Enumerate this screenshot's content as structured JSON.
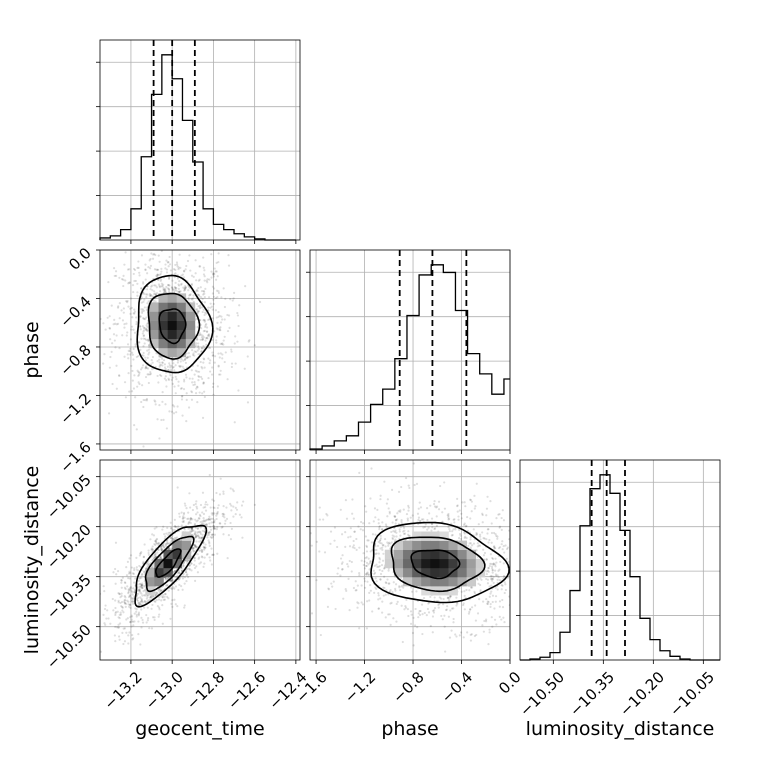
{
  "chart_data": {
    "type": "corner",
    "parameters": [
      "geocent_time",
      "phase",
      "luminosity_distance"
    ],
    "axis_labels": {
      "x": [
        "geocent_time",
        "phase",
        "luminosity_distance"
      ],
      "y": [
        "phase",
        "luminosity_distance"
      ]
    },
    "ranges": {
      "geocent_time": [
        -13.35,
        -12.38
      ],
      "phase": [
        -1.65,
        0.0
      ],
      "luminosity_distance": [
        -10.6,
        -10.0
      ]
    },
    "ticks": {
      "geocent_time": [
        {
          "v": -13.2,
          "label": "−13.2"
        },
        {
          "v": -13.0,
          "label": "−13.0"
        },
        {
          "v": -12.8,
          "label": "−12.8"
        },
        {
          "v": -12.6,
          "label": "−12.6"
        },
        {
          "v": -12.4,
          "label": "−12.4"
        }
      ],
      "phase": [
        {
          "v": -1.6,
          "label": "−1.6"
        },
        {
          "v": -1.2,
          "label": "−1.2"
        },
        {
          "v": -0.8,
          "label": "−0.8"
        },
        {
          "v": -0.4,
          "label": "−0.4"
        },
        {
          "v": 0.0,
          "label": "0.0"
        }
      ],
      "luminosity_distance": [
        {
          "v": -10.5,
          "label": "−10.50"
        },
        {
          "v": -10.35,
          "label": "−10.35"
        },
        {
          "v": -10.2,
          "label": "−10.20"
        },
        {
          "v": -10.05,
          "label": "−10.05"
        }
      ]
    },
    "histograms": {
      "geocent_time": {
        "bins": [
          -13.35,
          -13.3,
          -13.25,
          -13.2,
          -13.15,
          -13.1,
          -13.05,
          -13.0,
          -12.95,
          -12.9,
          -12.85,
          -12.8,
          -12.75,
          -12.7,
          -12.65,
          -12.6,
          -12.55,
          -12.5,
          -12.45,
          -12.4
        ],
        "counts": [
          2,
          4,
          10,
          30,
          80,
          140,
          178,
          155,
          115,
          75,
          30,
          15,
          10,
          6,
          3,
          1,
          0,
          0,
          0
        ],
        "quantiles": [
          -13.09,
          -13.0,
          -12.89
        ]
      },
      "phase": {
        "bins": [
          -1.65,
          -1.55,
          -1.45,
          -1.35,
          -1.25,
          -1.15,
          -1.05,
          -0.95,
          -0.85,
          -0.75,
          -0.65,
          -0.55,
          -0.45,
          -0.35,
          -0.25,
          -0.15,
          -0.05,
          0.0
        ],
        "counts": [
          2,
          8,
          18,
          28,
          55,
          90,
          120,
          180,
          265,
          345,
          365,
          350,
          275,
          190,
          150,
          110,
          140
        ],
        "quantiles": [
          -0.91,
          -0.64,
          -0.36
        ]
      },
      "luminosity_distance": {
        "bins": [
          -10.6,
          -10.57,
          -10.54,
          -10.51,
          -10.48,
          -10.45,
          -10.42,
          -10.39,
          -10.36,
          -10.33,
          -10.3,
          -10.27,
          -10.24,
          -10.21,
          -10.18,
          -10.15,
          -10.12,
          -10.09,
          -10.06,
          -10.03,
          -10.0
        ],
        "counts": [
          0,
          1,
          3,
          8,
          30,
          75,
          145,
          185,
          200,
          180,
          140,
          90,
          45,
          22,
          10,
          4,
          1,
          0,
          0,
          0
        ],
        "quantiles": [
          -10.385,
          -10.34,
          -10.285
        ]
      }
    },
    "joint": [
      {
        "x": "geocent_time",
        "y": "phase",
        "center": [
          -13.0,
          -0.62
        ],
        "contour_levels": [
          {
            "sx": 0.07,
            "sy": 0.13,
            "pts": []
          },
          {
            "sx": 0.13,
            "sy": 0.3,
            "pts": []
          },
          {
            "sx": 0.19,
            "sy": 0.5,
            "pts": []
          }
        ],
        "rho": -0.05
      },
      {
        "x": "geocent_time",
        "y": "luminosity_distance",
        "center": [
          -13.02,
          -10.31
        ],
        "rho": 0.78,
        "sx": 0.085,
        "sy": 0.06
      },
      {
        "x": "phase",
        "y": "luminosity_distance",
        "center": [
          -0.62,
          -10.31
        ],
        "rho": -0.12,
        "sx": 0.28,
        "sy": 0.06
      }
    ]
  }
}
